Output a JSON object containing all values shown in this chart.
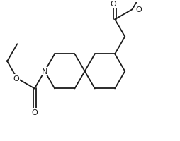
{
  "bg_color": "#ffffff",
  "line_color": "#1a1a1a",
  "line_width": 1.3,
  "figsize": [
    2.55,
    2.01
  ],
  "dpi": 100,
  "xlim": [
    -2.8,
    3.2
  ],
  "ylim": [
    -2.5,
    2.5
  ]
}
